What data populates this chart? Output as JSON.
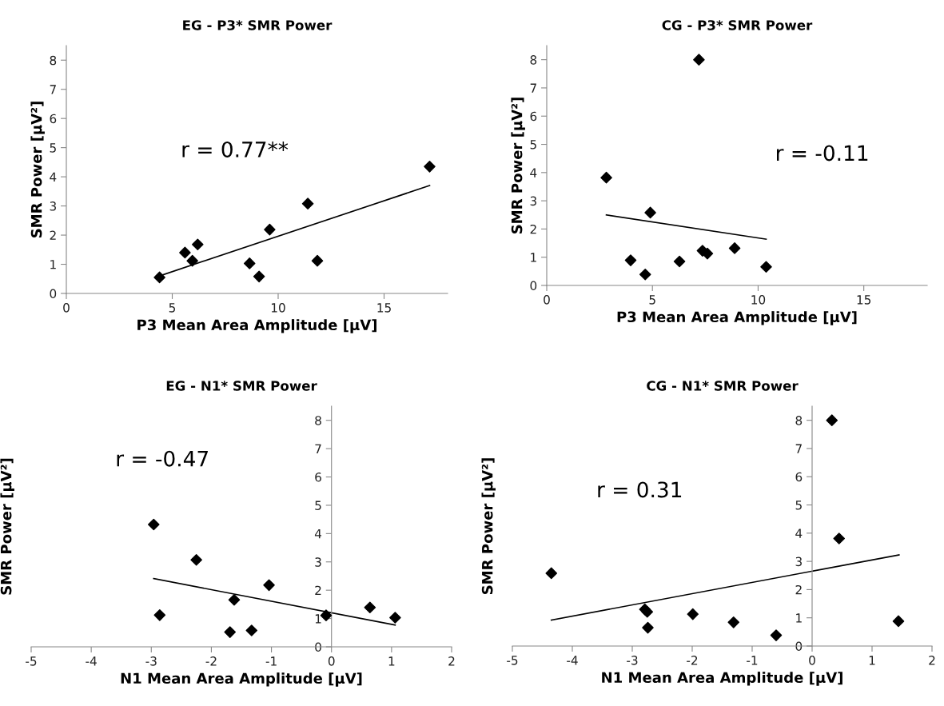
{
  "chart_data": [
    {
      "type": "scatter",
      "title": "EG - P3* SMR Power",
      "xlabel": "P3 Mean Area Amplitude [µV]",
      "ylabel": "SMR Power [µV²]",
      "xlim": [
        0,
        18
      ],
      "xticks": [
        0,
        5,
        10,
        15
      ],
      "ylim": [
        0,
        8.5
      ],
      "yticks": [
        0,
        1,
        2,
        3,
        4,
        5,
        6,
        7,
        8
      ],
      "grid": false,
      "annotations": [
        "r = 0.77**"
      ],
      "series": [
        {
          "marker": "diamond",
          "color": "#000000",
          "x": [
            4.4,
            5.6,
            5.95,
            6.2,
            8.65,
            9.1,
            9.6,
            11.4,
            11.85,
            17.15
          ],
          "values": [
            0.55,
            1.4,
            1.12,
            1.68,
            1.03,
            0.58,
            2.19,
            3.08,
            1.12,
            4.35
          ]
        },
        {
          "type": "line",
          "marker": "none",
          "color": "#000000",
          "x": [
            4.4,
            17.15
          ],
          "values": [
            0.6,
            3.7
          ]
        }
      ]
    },
    {
      "type": "scatter",
      "title": "CG - P3* SMR Power",
      "xlabel": "P3 Mean Area Amplitude [µV]",
      "ylabel": "SMR Power [µV²]",
      "xlim": [
        0,
        18
      ],
      "xticks": [
        0,
        5,
        10,
        15
      ],
      "ylim": [
        0,
        8.5
      ],
      "yticks": [
        0,
        1,
        2,
        3,
        4,
        5,
        6,
        7,
        8
      ],
      "grid": false,
      "annotations": [
        "r = -0.11"
      ],
      "series": [
        {
          "marker": "diamond",
          "color": "#000000",
          "x": [
            2.82,
            7.2,
            4.9,
            3.97,
            4.66,
            6.28,
            7.37,
            7.6,
            8.89,
            10.38
          ],
          "values": [
            3.82,
            8.0,
            2.58,
            0.89,
            0.39,
            0.85,
            1.23,
            1.13,
            1.32,
            0.66
          ]
        },
        {
          "type": "line",
          "marker": "none",
          "color": "#000000",
          "x": [
            2.82,
            10.38
          ],
          "values": [
            2.5,
            1.64
          ]
        }
      ]
    },
    {
      "type": "scatter",
      "title": "EG - N1* SMR Power",
      "xlabel": "N1 Mean Area Amplitude [µV]",
      "ylabel": "SMR Power [µV²]",
      "xlim": [
        -5,
        2
      ],
      "xticks": [
        -5,
        -4,
        -3,
        -2,
        -1,
        0,
        1,
        2
      ],
      "ylim": [
        0,
        8.5
      ],
      "yticks": [
        0,
        1,
        2,
        3,
        4,
        5,
        6,
        7,
        8
      ],
      "grid": false,
      "annotations": [
        "r = -0.47"
      ],
      "series": [
        {
          "marker": "diamond",
          "color": "#000000",
          "x": [
            -2.96,
            -2.86,
            -2.25,
            -1.69,
            -1.62,
            -1.33,
            -1.04,
            -0.09,
            0.64,
            1.06
          ],
          "values": [
            4.32,
            1.12,
            3.07,
            0.52,
            1.66,
            0.58,
            2.18,
            1.11,
            1.39,
            1.03
          ]
        },
        {
          "type": "line",
          "marker": "none",
          "color": "#000000",
          "x": [
            -2.96,
            1.06
          ],
          "values": [
            2.41,
            0.77
          ]
        }
      ]
    },
    {
      "type": "scatter",
      "title": "CG - N1* SMR Power",
      "xlabel": "N1 Mean Area Amplitude [µV]",
      "ylabel": "SMR Power [µV²]",
      "xlim": [
        -5,
        2
      ],
      "xticks": [
        -5,
        -4,
        -3,
        -2,
        -1,
        0,
        1,
        2
      ],
      "ylim": [
        0,
        8.5
      ],
      "yticks": [
        0,
        1,
        2,
        3,
        4,
        5,
        6,
        7,
        8
      ],
      "grid": false,
      "annotations": [
        "r = 0.31"
      ],
      "series": [
        {
          "marker": "diamond",
          "color": "#000000",
          "x": [
            -4.35,
            -2.79,
            -2.75,
            -2.74,
            -1.99,
            -1.31,
            -0.6,
            0.33,
            0.45,
            1.44
          ],
          "values": [
            2.58,
            1.3,
            1.21,
            0.65,
            1.13,
            0.84,
            0.38,
            8.0,
            3.81,
            0.88
          ]
        },
        {
          "type": "line",
          "marker": "none",
          "color": "#000000",
          "x": [
            -4.35,
            1.45
          ],
          "values": [
            0.92,
            3.23
          ]
        }
      ]
    }
  ]
}
